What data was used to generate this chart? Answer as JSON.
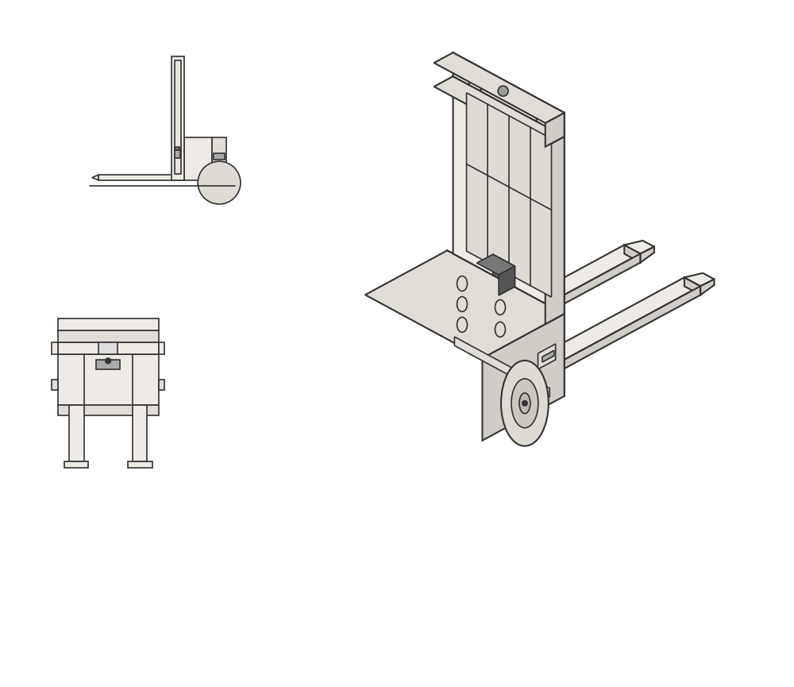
{
  "bg_color": "#ffffff",
  "line_color": "#333333",
  "fill_light": "#eeebe6",
  "fill_mid": "#e0dcd6",
  "fill_dark": "#d0ccc6",
  "fill_darker": "#c0bbb4",
  "sensor_dark": "#666666",
  "sensor_mid": "#777777",
  "sensor_light": "#888888",
  "lw": 1.2,
  "lw_thick": 1.5,
  "fig_width": 10.0,
  "fig_height": 8.65
}
